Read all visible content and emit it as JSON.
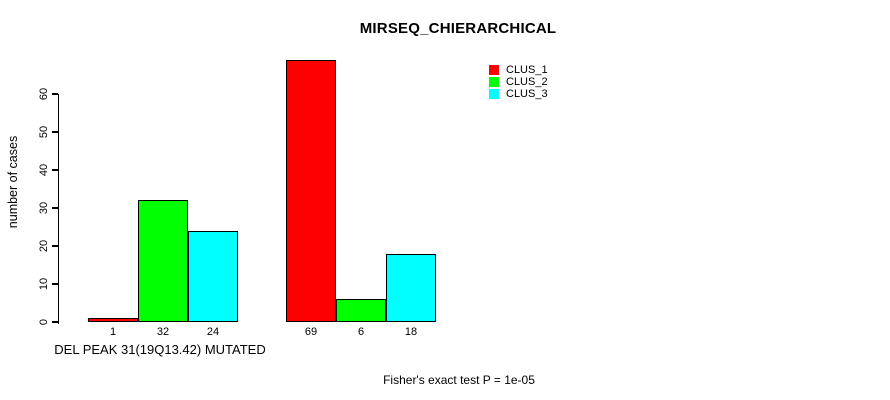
{
  "title": "MIRSEQ_CHIERARCHICAL",
  "chart_data": {
    "type": "bar",
    "title": "MIRSEQ_CHIERARCHICAL",
    "ylabel": "number of cases",
    "xlabel": "DEL PEAK 31(19Q13.42) MUTATED",
    "footnote": "Fisher's exact test P = 1e-05",
    "categories": [
      "DEL PEAK 31(19Q13.42) MUTATED",
      ""
    ],
    "series": [
      {
        "name": "CLUS_1",
        "color": "#ff0000",
        "values": [
          1,
          69
        ]
      },
      {
        "name": "CLUS_2",
        "color": "#00ff00",
        "values": [
          32,
          6
        ]
      },
      {
        "name": "CLUS_3",
        "color": "#00ffff",
        "values": [
          24,
          18
        ]
      }
    ],
    "bar_value_labels": [
      [
        1,
        32,
        24
      ],
      [
        69,
        6,
        18
      ]
    ],
    "yticks": [
      0,
      10,
      20,
      30,
      40,
      50,
      60
    ],
    "ylim": [
      0,
      69
    ],
    "grid": false,
    "legend_position": "top-right",
    "legend_entries": [
      "CLUS_1",
      "CLUS_2",
      "CLUS_3"
    ]
  },
  "colors": {
    "clus1": "#ff0000",
    "clus2": "#00ff00",
    "clus3": "#00ffff",
    "axis": "#000000",
    "background": "#ffffff"
  }
}
